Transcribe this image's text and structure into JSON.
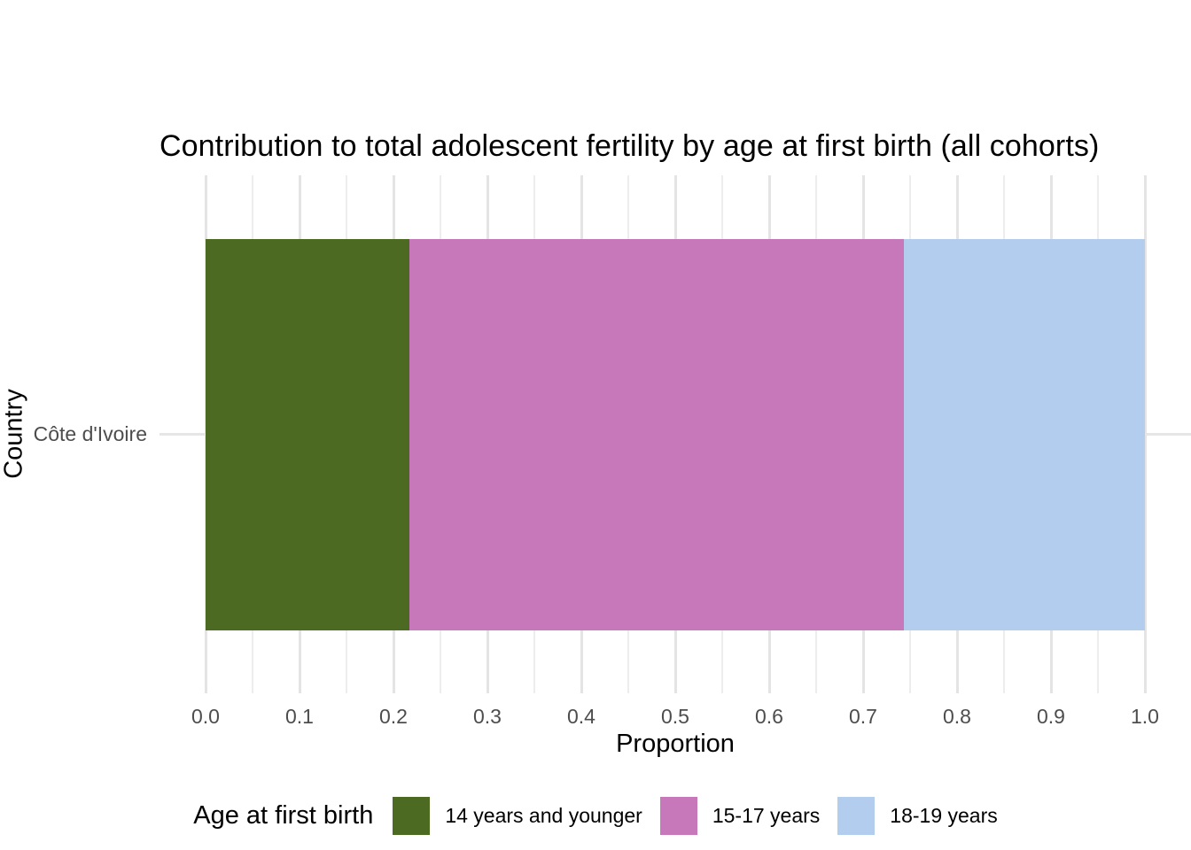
{
  "chart_data": {
    "type": "bar",
    "orientation": "horizontal",
    "stacked": true,
    "title": "Contribution to total adolescent fertility by age at first birth (all cohorts)",
    "xlabel": "Proportion",
    "ylabel": "Country",
    "categories": [
      "Côte d'Ivoire"
    ],
    "series": [
      {
        "name": "14 years and younger",
        "values": [
          0.217
        ],
        "color": "#4d6a23"
      },
      {
        "name": "15-17 years",
        "values": [
          0.526
        ],
        "color": "#c678bb"
      },
      {
        "name": "18-19 years",
        "values": [
          0.257
        ],
        "color": "#b3cdee"
      }
    ],
    "xlim": [
      0,
      1
    ],
    "x_ticks": [
      0.0,
      0.1,
      0.2,
      0.3,
      0.4,
      0.5,
      0.6,
      0.7,
      0.8,
      0.9,
      1.0
    ],
    "x_tick_labels": [
      "0.0",
      "0.1",
      "0.2",
      "0.3",
      "0.4",
      "0.5",
      "0.6",
      "0.7",
      "0.8",
      "0.9",
      "1.0"
    ],
    "x_minor_ticks": [
      0.05,
      0.15,
      0.25,
      0.35,
      0.45,
      0.55,
      0.65,
      0.75,
      0.85,
      0.95
    ],
    "grid": "vertical major and minor gridlines, horizontal major at category",
    "legend": {
      "title": "Age at first birth",
      "position": "bottom"
    }
  },
  "colors": {
    "background": "#ffffff",
    "grid_major": "#e4e4e4",
    "grid_minor": "#ededed",
    "axis_text": "#4d4d4d",
    "title_text": "#000000"
  }
}
